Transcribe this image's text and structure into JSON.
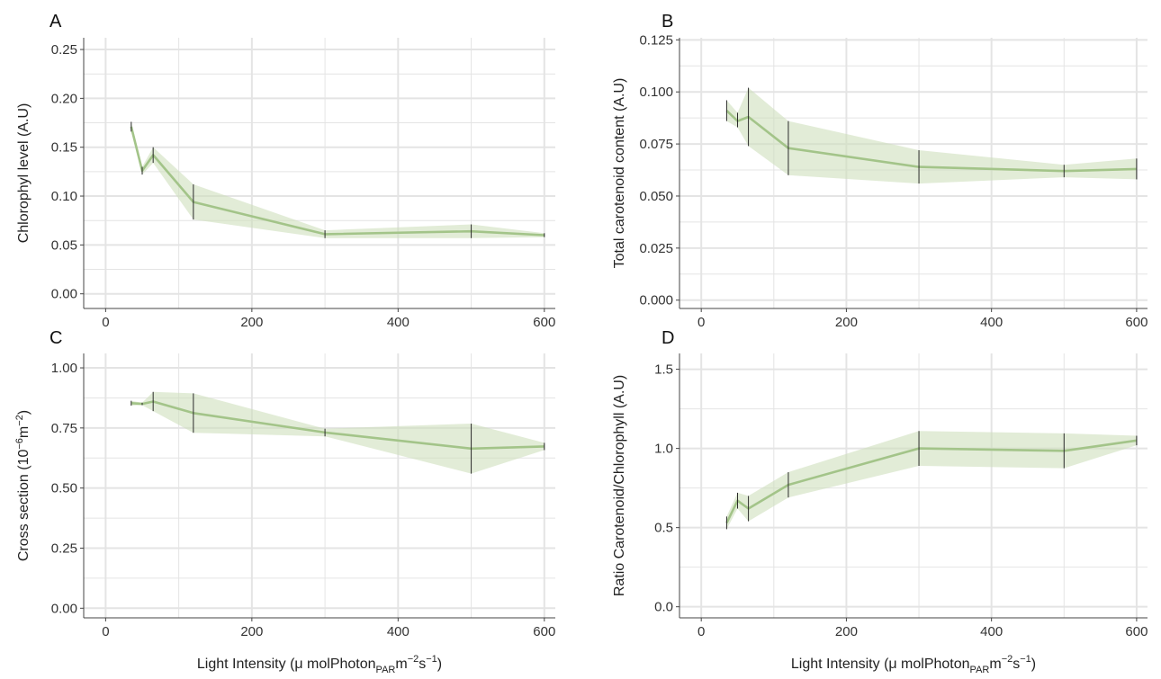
{
  "figure": {
    "ribbon_color": "#cfe0bd",
    "line_color": "#a3c489",
    "errorbar_color": "#2b2b2b",
    "grid_color": "#e4e4e4",
    "x_axis_title": "Light Intensity (μ molPhoton",
    "x_axis_sub": "PAR",
    "x_axis_mid": "m",
    "x_axis_sup1": "−2",
    "x_axis_s": "s",
    "x_axis_sup2": "−1",
    "x_axis_close": ")"
  },
  "chart_data": [
    {
      "panel": "A",
      "type": "line",
      "ylabel": "Chlorophyl level (A.U)",
      "xlim": [
        -30,
        615
      ],
      "ylim": [
        -0.015,
        0.262
      ],
      "x_ticks": [
        0,
        200,
        400,
        600
      ],
      "x_tick_labels": [
        "0",
        "200",
        "400",
        "600"
      ],
      "x_axis_title_shown": false,
      "y_ticks": [
        0,
        0.05,
        0.1,
        0.15,
        0.2,
        0.25
      ],
      "y_tick_labels": [
        "0.00",
        "0.05",
        "0.10",
        "0.15",
        "0.20",
        "0.25"
      ],
      "grid": true,
      "series": [
        {
          "x": [
            35,
            50,
            65,
            120,
            300,
            500,
            600
          ],
          "y": [
            0.171,
            0.126,
            0.142,
            0.094,
            0.061,
            0.064,
            0.06
          ],
          "error_low": [
            0.166,
            0.122,
            0.134,
            0.076,
            0.057,
            0.057,
            0.058
          ],
          "error_high": [
            0.176,
            0.13,
            0.15,
            0.112,
            0.065,
            0.071,
            0.062
          ],
          "ribbon_low": [
            0.166,
            0.122,
            0.134,
            0.076,
            0.057,
            0.057,
            0.058
          ],
          "ribbon_high": [
            0.176,
            0.13,
            0.15,
            0.112,
            0.065,
            0.071,
            0.062
          ]
        }
      ]
    },
    {
      "panel": "B",
      "type": "line",
      "ylabel": "Total carotenoid content (A.U)",
      "xlim": [
        -30,
        615
      ],
      "ylim": [
        -0.004,
        0.126
      ],
      "x_ticks": [
        0,
        200,
        400,
        600
      ],
      "x_tick_labels": [
        "0",
        "200",
        "400",
        "600"
      ],
      "x_axis_title_shown": false,
      "y_ticks": [
        0,
        0.025,
        0.05,
        0.075,
        0.1,
        0.125
      ],
      "y_tick_labels": [
        "0.000",
        "0.025",
        "0.050",
        "0.075",
        "0.100",
        "0.125"
      ],
      "grid": true,
      "series": [
        {
          "x": [
            35,
            50,
            65,
            120,
            300,
            500,
            600
          ],
          "y": [
            0.091,
            0.086,
            0.088,
            0.073,
            0.064,
            0.062,
            0.063
          ],
          "error_low": [
            0.086,
            0.083,
            0.074,
            0.06,
            0.056,
            0.059,
            0.058
          ],
          "error_high": [
            0.096,
            0.09,
            0.102,
            0.086,
            0.072,
            0.065,
            0.068
          ],
          "ribbon_low": [
            0.086,
            0.083,
            0.074,
            0.06,
            0.056,
            0.059,
            0.058
          ],
          "ribbon_high": [
            0.096,
            0.09,
            0.102,
            0.086,
            0.072,
            0.065,
            0.068
          ]
        }
      ]
    },
    {
      "panel": "C",
      "type": "line",
      "ylabel": "Cross section (10",
      "ylabel_sup1": "−6",
      "ylabel_mid": "m",
      "ylabel_sup2": "−2",
      "ylabel_close": ")",
      "xlim": [
        -30,
        615
      ],
      "ylim": [
        -0.04,
        1.06
      ],
      "x_ticks": [
        0,
        200,
        400,
        600
      ],
      "x_tick_labels": [
        "0",
        "200",
        "400",
        "600"
      ],
      "x_axis_title_shown": true,
      "y_ticks": [
        0,
        0.25,
        0.5,
        0.75,
        1.0
      ],
      "y_tick_labels": [
        "0.00",
        "0.25",
        "0.50",
        "0.75",
        "1.00"
      ],
      "grid": true,
      "series": [
        {
          "x": [
            35,
            50,
            65,
            120,
            300,
            500,
            600
          ],
          "y": [
            0.853,
            0.85,
            0.86,
            0.812,
            0.731,
            0.664,
            0.673
          ],
          "error_low": [
            0.843,
            0.845,
            0.82,
            0.73,
            0.715,
            0.56,
            0.658
          ],
          "error_high": [
            0.863,
            0.855,
            0.9,
            0.894,
            0.747,
            0.768,
            0.688
          ],
          "ribbon_low": [
            0.843,
            0.845,
            0.82,
            0.73,
            0.715,
            0.56,
            0.658
          ],
          "ribbon_high": [
            0.863,
            0.855,
            0.9,
            0.894,
            0.747,
            0.768,
            0.688
          ]
        }
      ]
    },
    {
      "panel": "D",
      "type": "line",
      "ylabel": "Ratio Carotenoid/Chlorophyll (A.U)",
      "xlim": [
        -30,
        615
      ],
      "ylim": [
        -0.07,
        1.6
      ],
      "x_ticks": [
        0,
        200,
        400,
        600
      ],
      "x_tick_labels": [
        "0",
        "200",
        "400",
        "600"
      ],
      "x_axis_title_shown": true,
      "y_ticks": [
        0,
        0.5,
        1.0,
        1.5
      ],
      "y_tick_labels": [
        "0.0",
        "0.5",
        "1.0",
        "1.5"
      ],
      "grid": true,
      "series": [
        {
          "x": [
            35,
            50,
            65,
            120,
            300,
            500,
            600
          ],
          "y": [
            0.53,
            0.67,
            0.62,
            0.77,
            1.0,
            0.985,
            1.05
          ],
          "error_low": [
            0.49,
            0.62,
            0.54,
            0.69,
            0.89,
            0.875,
            1.02
          ],
          "error_high": [
            0.57,
            0.72,
            0.7,
            0.85,
            1.11,
            1.095,
            1.08
          ],
          "ribbon_low": [
            0.49,
            0.62,
            0.54,
            0.69,
            0.89,
            0.875,
            1.02
          ],
          "ribbon_high": [
            0.57,
            0.72,
            0.7,
            0.85,
            1.11,
            1.095,
            1.08
          ]
        }
      ]
    }
  ]
}
